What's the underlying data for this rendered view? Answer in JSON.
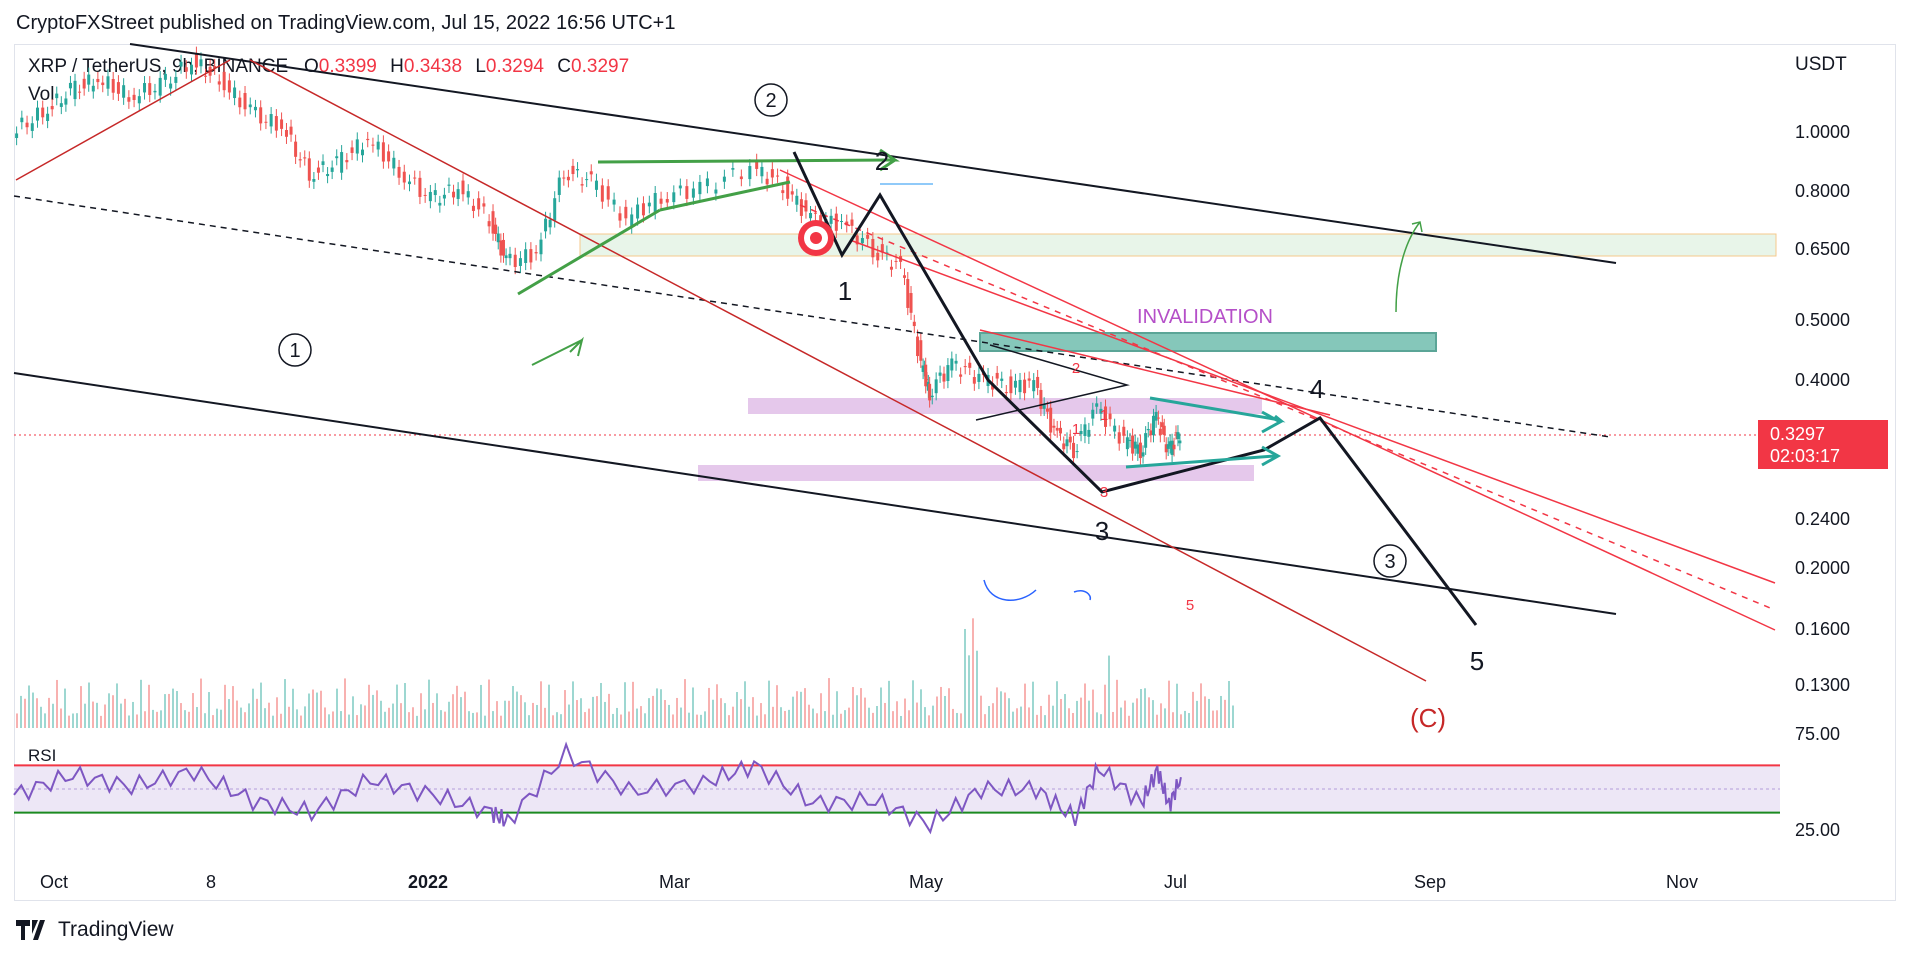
{
  "header": {
    "attribution": "CryptoFXStreet published on TradingView.com, Jul 15, 2022 16:56 UTC+1"
  },
  "legend": {
    "symbol": "XRP / TetherUS, 9h, BINANCE",
    "o_label": "O",
    "o_value": "0.3399",
    "h_label": "H",
    "h_value": "0.3438",
    "l_label": "L",
    "l_value": "0.3294",
    "c_label": "C",
    "c_value": "0.3297",
    "vol_label": "Vol",
    "rsi_label": "RSI"
  },
  "axis": {
    "unit": "USDT",
    "price_ticks": [
      "1.0000",
      "0.8000",
      "0.6500",
      "0.5000",
      "0.4000",
      "0.2400",
      "0.2000",
      "0.1600",
      "0.1300"
    ],
    "rsi_ticks": [
      "75.00",
      "25.00"
    ],
    "time_ticks": [
      "Oct",
      "8",
      "2022",
      "Mar",
      "May",
      "Jul",
      "Sep",
      "Nov"
    ],
    "last_price": "0.3297",
    "countdown": "02:03:17"
  },
  "annotations": {
    "wave_circle_1": "1",
    "wave_circle_2": "2",
    "wave_circle_3": "3",
    "label_1": "1",
    "label_2": "2",
    "label_3": "3",
    "label_4": "4",
    "label_5": "5",
    "label_c": "(C)",
    "invalidation": "INVALIDATION",
    "small_1a": "1",
    "small_1b": "1",
    "small_2": "2",
    "small_3": "3",
    "small_5": "5"
  },
  "footer": {
    "brand": "TradingView",
    "logo": "tradingview-logo-icon"
  },
  "colors": {
    "up": "#26a69a",
    "down": "#ef5350",
    "accent_red": "#f23645",
    "wave_green": "#43a047",
    "teal": "#26a69a",
    "purple": "#b54fc8",
    "rsi_line": "#7e57c2",
    "rsi_upper": "#f23645",
    "rsi_lower": "#1b8a20"
  },
  "chart_data": {
    "type": "candlestick",
    "title": "XRP / TetherUS, 9h, BINANCE",
    "y_scale": "log",
    "ylim": [
      0.115,
      1.3
    ],
    "x_range": [
      "2021-09",
      "2022-12"
    ],
    "series": [
      {
        "name": "XRP / TetherUS",
        "values": [
          {
            "x": "2021-09-20",
            "y": 0.95
          },
          {
            "x": "2021-09-28",
            "y": 1.02
          },
          {
            "x": "2021-10-05",
            "y": 1.1
          },
          {
            "x": "2021-10-12",
            "y": 1.15
          },
          {
            "x": "2021-10-20",
            "y": 1.08
          },
          {
            "x": "2021-10-28",
            "y": 1.12
          },
          {
            "x": "2021-11-05",
            "y": 1.22
          },
          {
            "x": "2021-11-12",
            "y": 1.15
          },
          {
            "x": "2021-11-20",
            "y": 1.02
          },
          {
            "x": "2021-11-28",
            "y": 0.97
          },
          {
            "x": "2021-12-05",
            "y": 0.82
          },
          {
            "x": "2021-12-12",
            "y": 0.85
          },
          {
            "x": "2021-12-20",
            "y": 0.93
          },
          {
            "x": "2021-12-28",
            "y": 0.83
          },
          {
            "x": "2022-01-05",
            "y": 0.75
          },
          {
            "x": "2022-01-12",
            "y": 0.78
          },
          {
            "x": "2022-01-20",
            "y": 0.7
          },
          {
            "x": "2022-01-24",
            "y": 0.6
          },
          {
            "x": "2022-02-01",
            "y": 0.62
          },
          {
            "x": "2022-02-08",
            "y": 0.83
          },
          {
            "x": "2022-02-15",
            "y": 0.8
          },
          {
            "x": "2022-02-24",
            "y": 0.7
          },
          {
            "x": "2022-03-05",
            "y": 0.76
          },
          {
            "x": "2022-03-15",
            "y": 0.78
          },
          {
            "x": "2022-03-28",
            "y": 0.84
          },
          {
            "x": "2022-04-05",
            "y": 0.79
          },
          {
            "x": "2022-04-12",
            "y": 0.7
          },
          {
            "x": "2022-04-20",
            "y": 0.69
          },
          {
            "x": "2022-04-28",
            "y": 0.63
          },
          {
            "x": "2022-05-05",
            "y": 0.59
          },
          {
            "x": "2022-05-10",
            "y": 0.42
          },
          {
            "x": "2022-05-12",
            "y": 0.38
          },
          {
            "x": "2022-05-18",
            "y": 0.42
          },
          {
            "x": "2022-05-25",
            "y": 0.4
          },
          {
            "x": "2022-06-01",
            "y": 0.39
          },
          {
            "x": "2022-06-08",
            "y": 0.39
          },
          {
            "x": "2022-06-13",
            "y": 0.33
          },
          {
            "x": "2022-06-18",
            "y": 0.31
          },
          {
            "x": "2022-06-24",
            "y": 0.36
          },
          {
            "x": "2022-07-01",
            "y": 0.32
          },
          {
            "x": "2022-07-05",
            "y": 0.31
          },
          {
            "x": "2022-07-09",
            "y": 0.35
          },
          {
            "x": "2022-07-12",
            "y": 0.31
          },
          {
            "x": "2022-07-15",
            "y": 0.3297
          }
        ]
      }
    ],
    "rsi": {
      "ylim": [
        0,
        100
      ],
      "upper": 70,
      "lower": 30,
      "values": [
        {
          "x": "2021-09-20",
          "y": 45
        },
        {
          "x": "2021-10-05",
          "y": 62
        },
        {
          "x": "2021-10-20",
          "y": 52
        },
        {
          "x": "2021-11-05",
          "y": 65
        },
        {
          "x": "2021-11-20",
          "y": 40
        },
        {
          "x": "2021-12-05",
          "y": 30
        },
        {
          "x": "2021-12-20",
          "y": 58
        },
        {
          "x": "2022-01-05",
          "y": 45
        },
        {
          "x": "2022-01-20",
          "y": 30
        },
        {
          "x": "2022-01-24",
          "y": 22
        },
        {
          "x": "2022-02-08",
          "y": 80
        },
        {
          "x": "2022-02-24",
          "y": 48
        },
        {
          "x": "2022-03-15",
          "y": 55
        },
        {
          "x": "2022-03-28",
          "y": 70
        },
        {
          "x": "2022-04-12",
          "y": 38
        },
        {
          "x": "2022-04-28",
          "y": 40
        },
        {
          "x": "2022-05-12",
          "y": 20
        },
        {
          "x": "2022-05-25",
          "y": 50
        },
        {
          "x": "2022-06-08",
          "y": 50
        },
        {
          "x": "2022-06-18",
          "y": 25
        },
        {
          "x": "2022-06-24",
          "y": 68
        },
        {
          "x": "2022-07-05",
          "y": 38
        },
        {
          "x": "2022-07-09",
          "y": 66
        },
        {
          "x": "2022-07-12",
          "y": 36
        },
        {
          "x": "2022-07-15",
          "y": 60
        }
      ]
    }
  }
}
